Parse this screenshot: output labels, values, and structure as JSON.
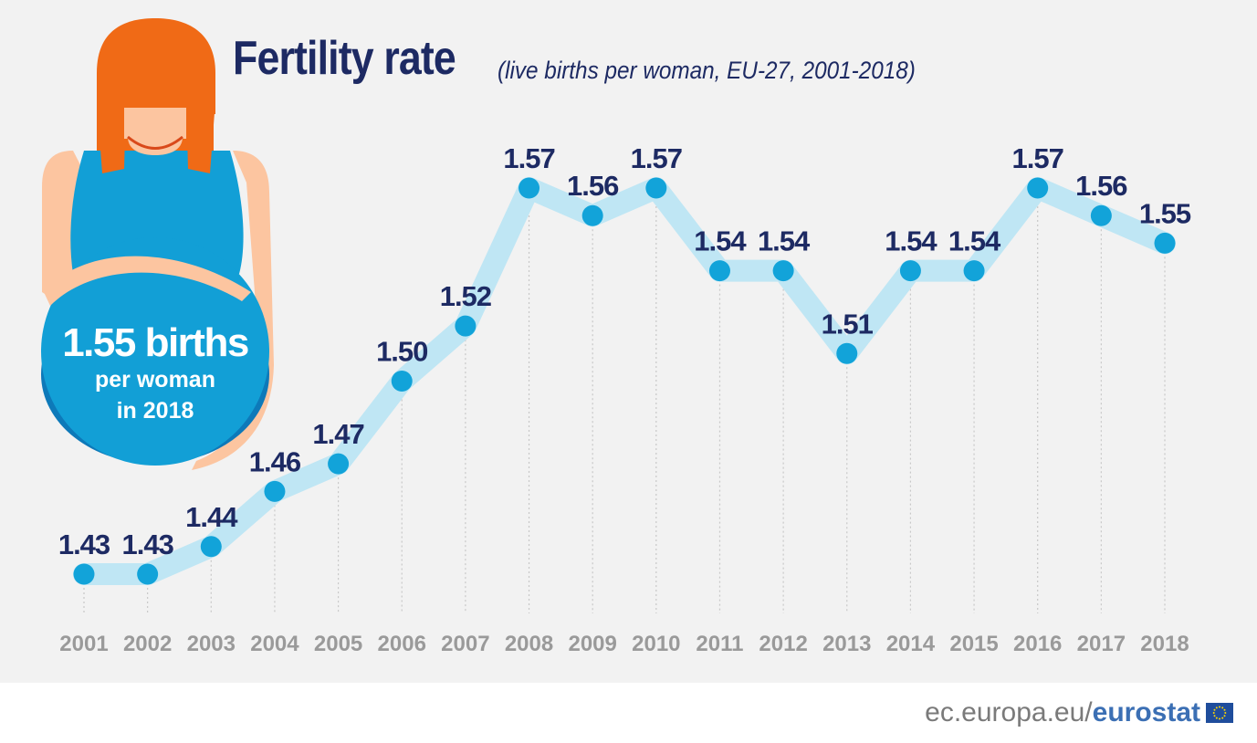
{
  "title": "Fertility rate",
  "subtitle": "(live births per woman, EU-27, 2001-2018)",
  "callout": {
    "headline": "1.55 births",
    "line1": "per woman",
    "line2": "in 2018"
  },
  "footer": {
    "url": "ec.europa.eu/",
    "brand": "eurostat"
  },
  "colors": {
    "background": "#f2f2f2",
    "title": "#1d2a63",
    "marker": "#12a3d9",
    "line_halo": "#bfe6f4",
    "axis_label": "#9a9a9a",
    "hair": "#f06a16",
    "dress": "#129fd6",
    "skin": "#fcc5a0"
  },
  "chart_data": {
    "type": "line",
    "title": "Fertility rate",
    "subtitle": "(live births per woman, EU-27, 2001-2018)",
    "x": [
      "2001",
      "2002",
      "2003",
      "2004",
      "2005",
      "2006",
      "2007",
      "2008",
      "2009",
      "2010",
      "2011",
      "2012",
      "2013",
      "2014",
      "2015",
      "2016",
      "2017",
      "2018"
    ],
    "series": [
      {
        "values": [
          1.43,
          1.43,
          1.44,
          1.46,
          1.47,
          1.5,
          1.52,
          1.57,
          1.56,
          1.57,
          1.54,
          1.54,
          1.51,
          1.54,
          1.54,
          1.57,
          1.56,
          1.55
        ],
        "labels": [
          "1.43",
          "1.43",
          "1.44",
          "1.46",
          "1.47",
          "1.50",
          "1.52",
          "1.57",
          "1.56",
          "1.57",
          "1.54",
          "1.54",
          "1.51",
          "1.54",
          "1.54",
          "1.57",
          "1.56",
          "1.55"
        ]
      }
    ],
    "grid": false,
    "legend": "none"
  }
}
